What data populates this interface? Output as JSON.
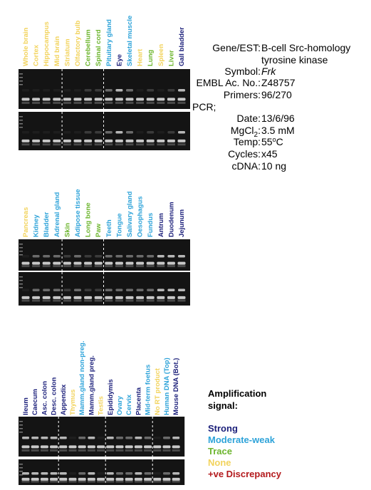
{
  "panels": [
    {
      "lanes": [
        {
          "label": "Whole brain",
          "color": "#f2d35c"
        },
        {
          "label": "Cortex",
          "color": "#f2d35c"
        },
        {
          "label": "Hippocampus",
          "color": "#f2d35c"
        },
        {
          "label": "Mid brain",
          "color": "#f2d35c"
        },
        {
          "label": "Striatum",
          "color": "#f2d35c"
        },
        {
          "label": "Olfactory bulb",
          "color": "#f2d35c"
        },
        {
          "label": "Cerebellum",
          "color": "#6cb52d"
        },
        {
          "label": "Spinal cord",
          "color": "#6cb52d"
        },
        {
          "label": "Pituitary gland",
          "color": "#2ea3d9"
        },
        {
          "label": "Eye",
          "color": "#1b1f7a"
        },
        {
          "label": "Skeletal muscle",
          "color": "#2ea3d9"
        },
        {
          "label": "Heart",
          "color": "#f2d35c"
        },
        {
          "label": "Lung",
          "color": "#6cb52d"
        },
        {
          "label": "Spleen",
          "color": "#f2d35c"
        },
        {
          "label": "Liver",
          "color": "#6cb52d"
        },
        {
          "label": "Gall bladder",
          "color": "#1b1f7a"
        }
      ]
    },
    {
      "lanes": [
        {
          "label": "Pancreas",
          "color": "#f2d35c"
        },
        {
          "label": "Kidney",
          "color": "#2ea3d9"
        },
        {
          "label": "Bladder",
          "color": "#2ea3d9"
        },
        {
          "label": "Adrenal gland",
          "color": "#2ea3d9"
        },
        {
          "label": "Skin",
          "color": "#6cb52d"
        },
        {
          "label": "Adipose tissue",
          "color": "#2ea3d9"
        },
        {
          "label": "Long bone",
          "color": "#6cb52d"
        },
        {
          "label": "Paw",
          "color": "#6cb52d"
        },
        {
          "label": "Teeth",
          "color": "#2ea3d9"
        },
        {
          "label": "Tongue",
          "color": "#2ea3d9"
        },
        {
          "label": "Salivary gland",
          "color": "#2ea3d9"
        },
        {
          "label": "Oesophagus",
          "color": "#2ea3d9"
        },
        {
          "label": "Fundus",
          "color": "#2ea3d9"
        },
        {
          "label": "Antrum",
          "color": "#1b1f7a"
        },
        {
          "label": "Duodenum",
          "color": "#1b1f7a"
        },
        {
          "label": "Jejunum",
          "color": "#1b1f7a"
        }
      ]
    },
    {
      "lanes": [
        {
          "label": "Ileum",
          "color": "#1b1f7a"
        },
        {
          "label": "Caecum",
          "color": "#1b1f7a"
        },
        {
          "label": "Asc. colon",
          "color": "#1b1f7a"
        },
        {
          "label": "Desc. colon",
          "color": "#1b1f7a"
        },
        {
          "label": "Appendix",
          "color": "#1b1f7a"
        },
        {
          "label": "Thymus",
          "color": "#f2d35c"
        },
        {
          "label": "Mamm.gland non-preg.",
          "color": "#2ea3d9"
        },
        {
          "label": "Mamm.gland preg.",
          "color": "#1b1f7a"
        },
        {
          "label": "Testis",
          "color": "#f2d35c"
        },
        {
          "label": "Epididymis",
          "color": "#1b1f7a"
        },
        {
          "label": "Ovary",
          "color": "#2ea3d9"
        },
        {
          "label": "Cervix",
          "color": "#2ea3d9"
        },
        {
          "label": "Placenta",
          "color": "#1b1f7a"
        },
        {
          "label": "Mid-term foetus",
          "color": "#2ea3d9"
        },
        {
          "label": "No RT product",
          "color": "#f2d35c"
        },
        {
          "label": "Human DNA (Top)",
          "color": "#2ea3d9"
        },
        {
          "label": "Mouse DNA (Bot.)",
          "color": "#1b1f7a"
        }
      ]
    }
  ],
  "info": {
    "gene_label": "Gene/EST:",
    "gene_line1": "B-cell Src-homology",
    "gene_line2": "tyrosine kinase",
    "symbol_label": "Symbol:",
    "symbol": "Frk",
    "embl_label": "EMBL Ac. No.:",
    "embl": "Z48757",
    "primers_label": "Primers:",
    "primers": "96/270",
    "pcr": "PCR;",
    "date_label": "Date:",
    "date": "13/6/96",
    "mgcl_label": "MgCl",
    "mgcl_sub": "2",
    "mgcl_colon": ":",
    "mgcl": "3.5 mM",
    "temp_label": "Temp:",
    "temp_num": "55",
    "temp_sup": "o",
    "temp_unit": "C",
    "cycles_label": "Cycles:",
    "cycles": "x45",
    "cdna_label": "cDNA:",
    "cdna": "10 ng"
  },
  "legend": {
    "title_line1": "Amplification",
    "title_line2": "signal:",
    "items": [
      {
        "label": "Strong",
        "color": "#1b1f7a"
      },
      {
        "label": "Moderate-weak",
        "color": "#2ea3d9"
      },
      {
        "label": "Trace",
        "color": "#6cb52d"
      },
      {
        "label": "None",
        "color": "#f2d35c"
      },
      {
        "label": "+ve Discrepancy",
        "color": "#b3191c"
      }
    ]
  }
}
